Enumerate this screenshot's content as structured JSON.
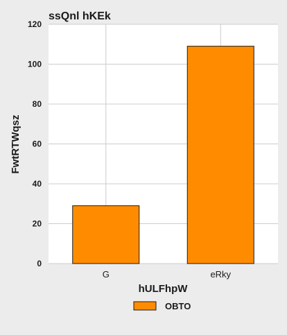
{
  "chart_data": {
    "type": "bar",
    "title": "ssQnl hKEk",
    "xlabel": "hULFhpW",
    "ylabel": "FwtRTWqsz",
    "categories": [
      "G",
      "eRky"
    ],
    "series": [
      {
        "name": "OBTO",
        "values": [
          29,
          109
        ]
      }
    ],
    "ylim": [
      0,
      120
    ],
    "yticks": [
      0,
      20,
      40,
      60,
      80,
      100,
      120
    ],
    "grid": true,
    "legend": "bottom-center",
    "colors": {
      "bar": "#ff8c00",
      "bar_edge": "#1a1a1a",
      "plot_bg": "#ffffff",
      "page_bg": "#ececec",
      "grid": "#cccccc"
    }
  }
}
